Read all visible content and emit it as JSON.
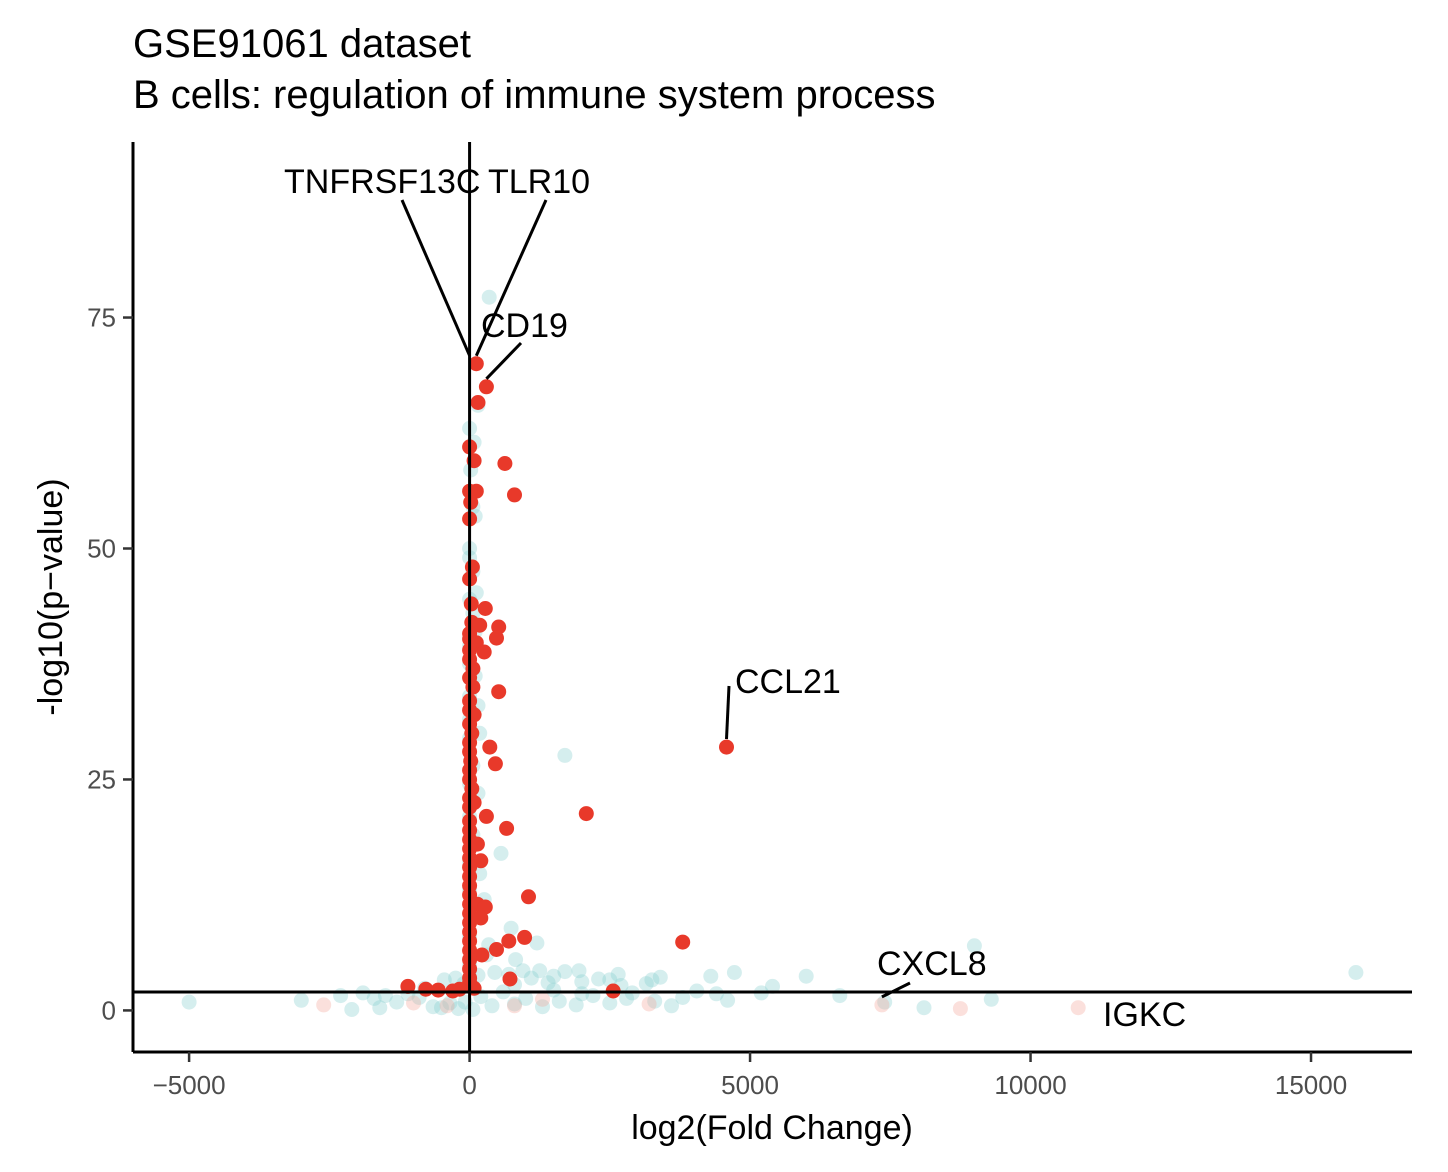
{
  "chart_data": {
    "type": "scatter",
    "title": "GSE91061 dataset",
    "subtitle": "B cells: regulation of immune system process",
    "xlabel": "log2(Fold Change)",
    "ylabel": "-log10(p−value)",
    "xlim": [
      -6000,
      16800
    ],
    "ylim": [
      -4.5,
      94
    ],
    "x_ticks": [
      -5000,
      0,
      5000,
      10000,
      15000
    ],
    "x_tick_labels": [
      "−5000",
      "0",
      "5000",
      "10000",
      "15000"
    ],
    "y_ticks": [
      0,
      25,
      50,
      75
    ],
    "y_tick_labels": [
      "0",
      "25",
      "50",
      "75"
    ],
    "grid": false,
    "reference_lines": {
      "vertical_x": 0,
      "horizontal_y": 2
    },
    "colors": {
      "significant": "#e8392a",
      "non_significant": "#88cfcf",
      "faint_red": "#f4a79a"
    },
    "series": [
      {
        "points": [
          [
            120,
            70
          ],
          [
            300,
            67.5
          ],
          [
            150,
            65.8
          ],
          [
            0,
            61
          ],
          [
            80,
            59.5
          ],
          [
            630,
            59.2
          ],
          [
            120,
            56.2
          ],
          [
            0,
            56.2
          ],
          [
            800,
            55.8
          ],
          [
            20,
            55
          ],
          [
            0,
            53.2
          ],
          [
            50,
            48
          ],
          [
            0,
            46.7
          ],
          [
            30,
            44
          ],
          [
            280,
            43.5
          ],
          [
            40,
            42
          ],
          [
            180,
            41.7
          ],
          [
            520,
            41.5
          ],
          [
            0,
            40.8
          ],
          [
            0,
            40.2
          ],
          [
            480,
            40.3
          ],
          [
            120,
            39.8
          ],
          [
            0,
            39
          ],
          [
            260,
            38.8
          ],
          [
            0,
            38
          ],
          [
            60,
            37
          ],
          [
            0,
            36
          ],
          [
            60,
            35
          ],
          [
            520,
            34.5
          ],
          [
            0,
            33.5
          ],
          [
            0,
            32.5
          ],
          [
            80,
            32
          ],
          [
            0,
            31
          ],
          [
            40,
            30
          ],
          [
            0,
            29
          ],
          [
            360,
            28.5
          ],
          [
            0,
            28
          ],
          [
            20,
            27
          ],
          [
            460,
            26.7
          ],
          [
            0,
            26
          ],
          [
            0,
            25
          ],
          [
            40,
            24
          ],
          [
            0,
            23
          ],
          [
            80,
            22.5
          ],
          [
            0,
            22
          ],
          [
            2080,
            21.3
          ],
          [
            300,
            21
          ],
          [
            0,
            20.5
          ],
          [
            660,
            19.7
          ],
          [
            0,
            19.5
          ],
          [
            0,
            18.5
          ],
          [
            140,
            18
          ],
          [
            0,
            17.5
          ],
          [
            0,
            16.5
          ],
          [
            200,
            16.2
          ],
          [
            0,
            15.5
          ],
          [
            0,
            14.5
          ],
          [
            0,
            13.5
          ],
          [
            0,
            12.5
          ],
          [
            1050,
            12.3
          ],
          [
            0,
            11.5
          ],
          [
            140,
            11.5
          ],
          [
            280,
            11.2
          ],
          [
            0,
            10.5
          ],
          [
            0,
            9.5
          ],
          [
            200,
            10
          ],
          [
            0,
            8.5
          ],
          [
            980,
            7.9
          ],
          [
            700,
            7.5
          ],
          [
            0,
            7.5
          ],
          [
            3800,
            7.4
          ],
          [
            480,
            6.6
          ],
          [
            0,
            6.5
          ],
          [
            220,
            6
          ],
          [
            0,
            5.5
          ],
          [
            0,
            4.5
          ],
          [
            0,
            3.5
          ],
          [
            720,
            3.4
          ],
          [
            0,
            3
          ],
          [
            -1100,
            2.6
          ],
          [
            -780,
            2.3
          ],
          [
            -560,
            2.2
          ],
          [
            -300,
            2.1
          ],
          [
            -180,
            2.3
          ],
          [
            80,
            2.4
          ],
          [
            4580,
            28.5
          ],
          [
            2560,
            2.1
          ]
        ]
      },
      {
        "points": [
          [
            350,
            77.2
          ],
          [
            150,
            65.5
          ],
          [
            0,
            63
          ],
          [
            80,
            61.5
          ],
          [
            20,
            58.5
          ],
          [
            60,
            54.5
          ],
          [
            100,
            53.5
          ],
          [
            0,
            50
          ],
          [
            0,
            49
          ],
          [
            60,
            47.5
          ],
          [
            120,
            45.2
          ],
          [
            0,
            44.5
          ],
          [
            60,
            43
          ],
          [
            100,
            41
          ],
          [
            0,
            39.5
          ],
          [
            0,
            37.5
          ],
          [
            100,
            36.2
          ],
          [
            0,
            34
          ],
          [
            150,
            33
          ],
          [
            0,
            31.5
          ],
          [
            180,
            30
          ],
          [
            0,
            29.5
          ],
          [
            60,
            26.5
          ],
          [
            0,
            24.5
          ],
          [
            150,
            23.5
          ],
          [
            1700,
            27.6
          ],
          [
            0,
            21
          ],
          [
            60,
            19
          ],
          [
            560,
            17
          ],
          [
            0,
            16
          ],
          [
            180,
            14.8
          ],
          [
            0,
            13
          ],
          [
            260,
            12
          ],
          [
            120,
            10.8
          ],
          [
            740,
            8.9
          ],
          [
            0,
            8
          ],
          [
            1200,
            7.3
          ],
          [
            340,
            7.1
          ],
          [
            9000,
            7
          ],
          [
            300,
            6
          ],
          [
            820,
            5.5
          ],
          [
            0,
            5
          ],
          [
            0,
            4.4
          ],
          [
            3150,
            2.9
          ],
          [
            2000,
            3.1
          ],
          [
            4720,
            4.1
          ],
          [
            6000,
            3.7
          ],
          [
            15800,
            4.1
          ],
          [
            5400,
            2.6
          ],
          [
            6600,
            1.6
          ],
          [
            3400,
            3.6
          ],
          [
            2500,
            3.3
          ],
          [
            1950,
            4.3
          ],
          [
            2650,
            3.9
          ],
          [
            3250,
            3.3
          ],
          [
            4300,
            3.7
          ],
          [
            1400,
            3
          ],
          [
            800,
            2.8
          ],
          [
            1100,
            3.5
          ],
          [
            1500,
            2.2
          ],
          [
            2000,
            1.8
          ],
          [
            2800,
            1.3
          ],
          [
            3300,
            1
          ],
          [
            3800,
            1.4
          ],
          [
            4400,
            1.8
          ],
          [
            7400,
            0.9
          ],
          [
            8100,
            0.3
          ],
          [
            9300,
            1.2
          ],
          [
            -5000,
            0.9
          ],
          [
            -3000,
            1.1
          ],
          [
            -2100,
            0.1
          ],
          [
            -1900,
            1.9
          ],
          [
            -1700,
            1.3
          ],
          [
            -1500,
            1.6
          ],
          [
            -1300,
            0.9
          ],
          [
            -1100,
            1.8
          ],
          [
            -900,
            1.4
          ],
          [
            -650,
            0.4
          ],
          [
            -500,
            0.3
          ],
          [
            -350,
            0.8
          ],
          [
            -200,
            0.2
          ],
          [
            -80,
            0.9
          ],
          [
            60,
            0.1
          ],
          [
            200,
            1.5
          ],
          [
            400,
            0.5
          ],
          [
            600,
            2
          ],
          [
            800,
            0.7
          ],
          [
            1000,
            1.3
          ],
          [
            1300,
            0.4
          ],
          [
            1600,
            1
          ],
          [
            1900,
            0.6
          ],
          [
            2200,
            1.6
          ],
          [
            2500,
            0.8
          ],
          [
            2900,
            1.9
          ],
          [
            3600,
            0.5
          ],
          [
            -450,
            3.3
          ],
          [
            -250,
            3.5
          ],
          [
            -100,
            2.9
          ],
          [
            150,
            3.8
          ],
          [
            450,
            4.1
          ],
          [
            700,
            3.9
          ],
          [
            950,
            4.3
          ],
          [
            1250,
            4.3
          ],
          [
            1500,
            3.7
          ],
          [
            1700,
            4.2
          ],
          [
            2300,
            3.4
          ],
          [
            2700,
            2.7
          ],
          [
            -2300,
            1.6
          ],
          [
            -1600,
            0.3
          ],
          [
            -800,
            2.4
          ],
          [
            4050,
            2.1
          ],
          [
            4600,
            1.1
          ],
          [
            5200,
            1.9
          ]
        ]
      },
      {
        "points": [
          [
            -2600,
            0.6
          ],
          [
            -1000,
            0.8
          ],
          [
            -400,
            0.5
          ],
          [
            800,
            0.5
          ],
          [
            3200,
            0.7
          ],
          [
            7350,
            0.6
          ],
          [
            8750,
            0.2
          ],
          [
            10850,
            0.3
          ],
          [
            1300,
            1.2
          ]
        ]
      }
    ],
    "annotations": [
      {
        "text": "TNFRSF13C",
        "x": 0,
        "y": 70
      },
      {
        "text": "TLR10",
        "x": 120,
        "y": 70
      },
      {
        "text": "CD19",
        "x": 300,
        "y": 67.5
      },
      {
        "text": "CCL21",
        "x": 4580,
        "y": 28.5
      },
      {
        "text": "CXCL8",
        "x": 7350,
        "y": 0.6
      },
      {
        "text": "IGKC",
        "x": 10850,
        "y": 0.3
      }
    ]
  }
}
